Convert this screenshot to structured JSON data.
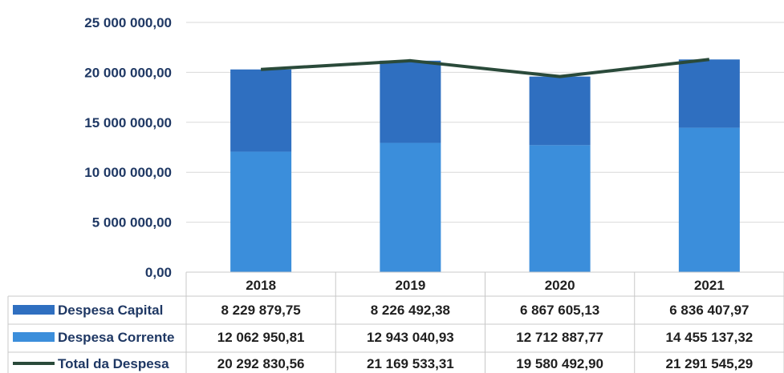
{
  "chart_data": {
    "type": "bar",
    "stacked": true,
    "categories": [
      "2018",
      "2019",
      "2020",
      "2021"
    ],
    "series": [
      {
        "name": "Despesa Capital",
        "type": "bar",
        "color": "#2f6fc0",
        "values": [
          8229879.75,
          8226492.38,
          6867605.13,
          6836407.97
        ],
        "labels": [
          "8  229  879,75",
          "8  226  492,38",
          "6  867  605,13",
          "6  836  407,97"
        ]
      },
      {
        "name": "Despesa Corrente",
        "type": "bar",
        "color": "#3b8edb",
        "values": [
          12062950.81,
          12943040.93,
          12712887.77,
          14455137.32
        ],
        "labels": [
          "12  062  950,81",
          "12  943  040,93",
          "12  712  887,77",
          "14  455  137,32"
        ]
      },
      {
        "name": "Total da Despesa",
        "type": "line",
        "color": "#2a4a3a",
        "values": [
          20292830.56,
          21169533.31,
          19580492.9,
          21291545.29
        ],
        "labels": [
          "20  292  830,56",
          "21  169  533,31",
          "19  580  492,90",
          "21  291  545,29"
        ]
      }
    ],
    "ylim": [
      0,
      25000000
    ],
    "yticks": [
      0,
      5000000,
      10000000,
      15000000,
      20000000,
      25000000
    ],
    "ytick_labels": [
      "0,00",
      "5  000  000,00",
      "10  000  000,00",
      "15  000  000,00",
      "20  000  000,00",
      "25  000  000,00"
    ],
    "grid": true,
    "legend": "data-table-left"
  }
}
